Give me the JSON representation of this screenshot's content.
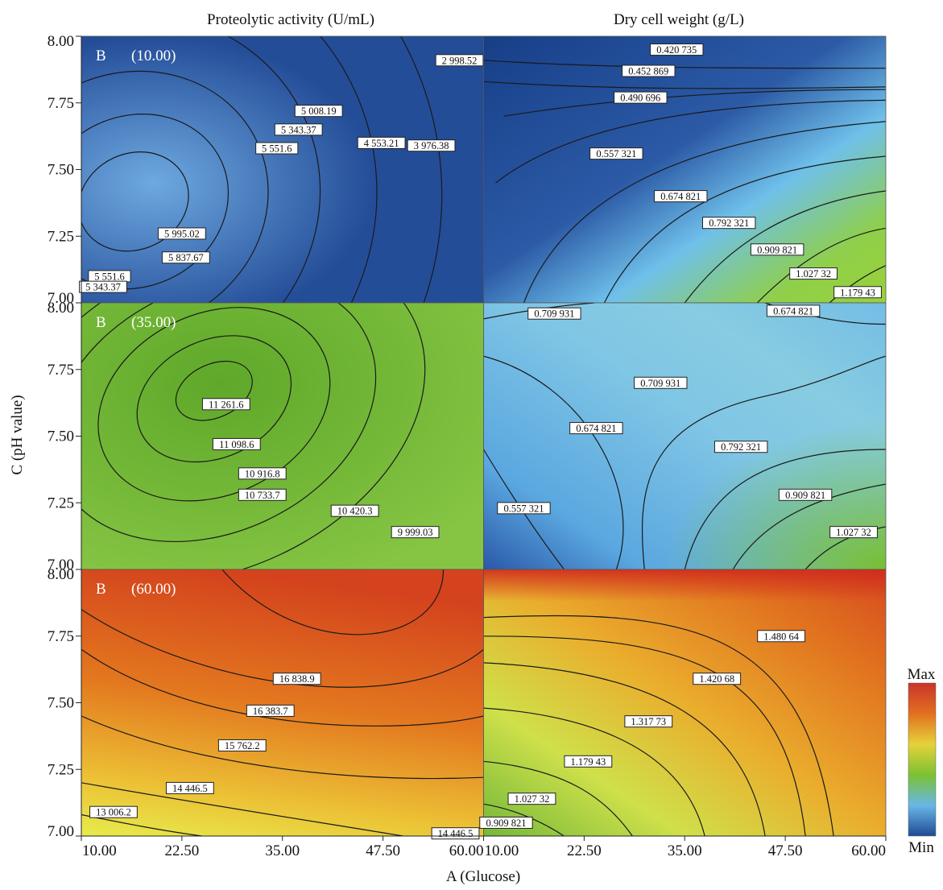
{
  "chart_data": {
    "type": "contour",
    "column_titles": [
      "Proteolytic activity (U/mL)",
      "Dry cell weight (g/L)"
    ],
    "xlabel": "A (Glucose)",
    "ylabel": "C (pH value)",
    "x_ticks": [
      "10.00",
      "22.50",
      "35.00",
      "47.50",
      "60.00"
    ],
    "x_ticks_second": [
      "10.00",
      "22.50",
      "35.00",
      "47.50",
      "60.00"
    ],
    "y_ticks": [
      "8.00",
      "7.75",
      "7.50",
      "7.25",
      "7.00"
    ],
    "x_range": [
      10,
      60
    ],
    "y_range": [
      7.0,
      8.0
    ],
    "row_tag_letter": "B",
    "colorbar": {
      "max_label": "Max",
      "min_label": "Min",
      "colors": [
        "#c9342c",
        "#e2701f",
        "#e6d23a",
        "#7cc132",
        "#68b7e6",
        "#1f4a94"
      ]
    },
    "panels": [
      {
        "row": 0,
        "col": 0,
        "tag": "(10.00)",
        "response": "Proteolytic activity",
        "contour_labels": [
          {
            "text": "2 998.52",
            "x": 57.0,
            "y": 7.91
          },
          {
            "text": "5 008.19",
            "x": 39.5,
            "y": 7.72
          },
          {
            "text": "5 343.37",
            "x": 37.0,
            "y": 7.65
          },
          {
            "text": "5 551.6",
            "x": 34.3,
            "y": 7.58
          },
          {
            "text": "4 553.21",
            "x": 47.3,
            "y": 7.6
          },
          {
            "text": "3 976.38",
            "x": 53.5,
            "y": 7.59
          },
          {
            "text": "5 995.02",
            "x": 22.5,
            "y": 7.26
          },
          {
            "text": "5 837.67",
            "x": 23.0,
            "y": 7.17
          },
          {
            "text": "5 551.6",
            "x": 13.5,
            "y": 7.1
          },
          {
            "text": "5 343.37",
            "x": 12.7,
            "y": 7.06
          }
        ]
      },
      {
        "row": 0,
        "col": 1,
        "tag": "",
        "response": "Dry cell weight",
        "contour_labels": [
          {
            "text": "0.420 735",
            "x": 34.0,
            "y": 7.95
          },
          {
            "text": "0.452 869",
            "x": 30.5,
            "y": 7.87
          },
          {
            "text": "0.490 696",
            "x": 29.5,
            "y": 7.77
          },
          {
            "text": "0.557 321",
            "x": 26.5,
            "y": 7.56
          },
          {
            "text": "0.674 821",
            "x": 34.5,
            "y": 7.4
          },
          {
            "text": "0.792 321",
            "x": 40.5,
            "y": 7.3
          },
          {
            "text": "0.909 821",
            "x": 46.5,
            "y": 7.2
          },
          {
            "text": "1.027 32",
            "x": 51.0,
            "y": 7.11
          },
          {
            "text": "1.179 43",
            "x": 56.5,
            "y": 7.04
          }
        ]
      },
      {
        "row": 1,
        "col": 0,
        "tag": "(35.00)",
        "response": "Proteolytic activity",
        "contour_labels": [
          {
            "text": "11 261.6",
            "x": 28.0,
            "y": 7.62
          },
          {
            "text": "11 098.6",
            "x": 29.3,
            "y": 7.47
          },
          {
            "text": "10 916.8",
            "x": 32.5,
            "y": 7.36
          },
          {
            "text": "10 733.7",
            "x": 32.5,
            "y": 7.28
          },
          {
            "text": "10 420.3",
            "x": 44.0,
            "y": 7.22
          },
          {
            "text": "9 999.03",
            "x": 51.5,
            "y": 7.14
          }
        ]
      },
      {
        "row": 1,
        "col": 1,
        "tag": "",
        "response": "Dry cell weight",
        "contour_labels": [
          {
            "text": "0.709 931",
            "x": 18.8,
            "y": 7.96
          },
          {
            "text": "0.674 821",
            "x": 48.5,
            "y": 7.97
          },
          {
            "text": "0.709 931",
            "x": 32.0,
            "y": 7.7
          },
          {
            "text": "0.674 821",
            "x": 24.0,
            "y": 7.53
          },
          {
            "text": "0.792 321",
            "x": 42.0,
            "y": 7.46
          },
          {
            "text": "0.909 821",
            "x": 50.0,
            "y": 7.28
          },
          {
            "text": "0.557 321",
            "x": 15.0,
            "y": 7.23
          },
          {
            "text": "1.027 32",
            "x": 56.0,
            "y": 7.14
          }
        ]
      },
      {
        "row": 2,
        "col": 0,
        "tag": "(60.00)",
        "response": "Proteolytic activity",
        "contour_labels": [
          {
            "text": "16 838.9",
            "x": 36.8,
            "y": 7.59
          },
          {
            "text": "16 383.7",
            "x": 33.5,
            "y": 7.47
          },
          {
            "text": "15 762.2",
            "x": 30.0,
            "y": 7.34
          },
          {
            "text": "14 446.5",
            "x": 23.5,
            "y": 7.18
          },
          {
            "text": "13 006.2",
            "x": 14.0,
            "y": 7.09
          },
          {
            "text": "14 446.5",
            "x": 56.5,
            "y": 7.01
          }
        ]
      },
      {
        "row": 2,
        "col": 1,
        "tag": "",
        "response": "Dry cell weight",
        "contour_labels": [
          {
            "text": "1.480 64",
            "x": 47.0,
            "y": 7.75
          },
          {
            "text": "1.420 68",
            "x": 39.0,
            "y": 7.59
          },
          {
            "text": "1.317 73",
            "x": 30.5,
            "y": 7.43
          },
          {
            "text": "1.179 43",
            "x": 23.0,
            "y": 7.28
          },
          {
            "text": "1.027 32",
            "x": 16.0,
            "y": 7.14
          },
          {
            "text": "0.909 821",
            "x": 12.8,
            "y": 7.05
          }
        ]
      }
    ]
  }
}
